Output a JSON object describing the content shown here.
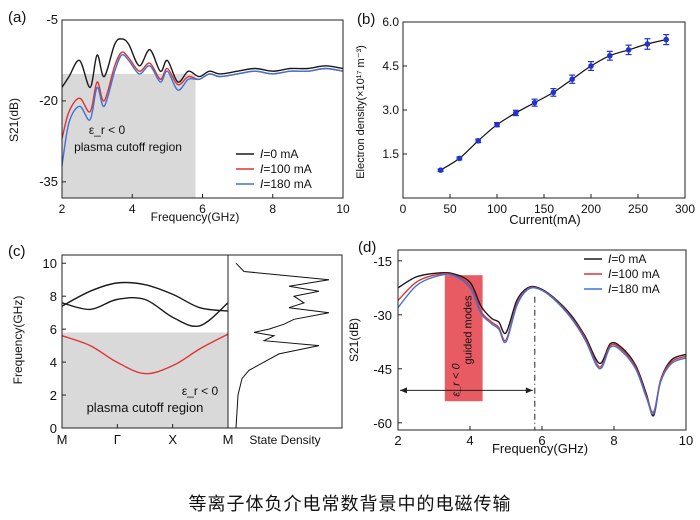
{
  "caption": "等离子体负介电常数背景中的电磁传输",
  "colors": {
    "black": "#1a1a1a",
    "red": "#e03232",
    "blue": "#3f72d6",
    "shade": "#d9d9d9",
    "pink": "#e85b63",
    "marker": "#2233cc"
  },
  "panels": {
    "a": {
      "label": "(a)"
    },
    "b": {
      "label": "(b)"
    },
    "c": {
      "label": "(c)"
    },
    "d": {
      "label": "(d)"
    }
  },
  "chart_data": [
    {
      "id": "a",
      "type": "line",
      "xlabel": "Frequency(GHz)",
      "ylabel": "S21(dB)",
      "xlim": [
        2,
        10
      ],
      "ylim": [
        -38,
        -5
      ],
      "xticks": [
        2,
        4,
        6,
        8,
        10
      ],
      "yticks": [
        -5,
        -20,
        -35
      ],
      "ytick_labels": [
        "-5",
        "-20",
        "-35"
      ],
      "shaded_region": {
        "x": [
          2,
          5.8
        ],
        "y": [
          -38,
          -15
        ]
      },
      "annotations": [
        "ε_r < 0",
        "plasma cutoff region"
      ],
      "legend_position": "bottom-right",
      "series": [
        {
          "name": "I=0 mA",
          "color": "black",
          "x": [
            2,
            2.2,
            2.5,
            2.8,
            3.0,
            3.2,
            3.5,
            3.7,
            3.9,
            4.2,
            4.5,
            4.8,
            5.0,
            5.3,
            5.6,
            5.9,
            6.2,
            6.5,
            7,
            7.5,
            8,
            8.5,
            9,
            9.5,
            10
          ],
          "y": [
            -17.5,
            -15.5,
            -12.5,
            -17.5,
            -11.5,
            -15.5,
            -9.5,
            -8.5,
            -9.5,
            -13.5,
            -10.5,
            -14.5,
            -12.5,
            -16.5,
            -14.5,
            -15.5,
            -14.5,
            -15,
            -14.5,
            -14,
            -14.5,
            -14,
            -14,
            -13.5,
            -14
          ]
        },
        {
          "name": "I=100 mA",
          "color": "red",
          "x": [
            2,
            2.2,
            2.5,
            2.8,
            3.0,
            3.2,
            3.5,
            3.7,
            3.9,
            4.2,
            4.5,
            4.8,
            5.0,
            5.3,
            5.6,
            5.9,
            6.2,
            6.5,
            7,
            7.5,
            8,
            8.5,
            9,
            9.5,
            10
          ],
          "y": [
            -27,
            -22,
            -19.5,
            -22,
            -16.5,
            -20,
            -13.5,
            -11,
            -12,
            -14.5,
            -13,
            -16,
            -14,
            -17,
            -15.5,
            -16,
            -15,
            -15.5,
            -15,
            -14.5,
            -15,
            -14.5,
            -14.5,
            -14,
            -14.5
          ]
        },
        {
          "name": "I=180 mA",
          "color": "blue",
          "x": [
            2,
            2.2,
            2.5,
            2.8,
            3.0,
            3.2,
            3.5,
            3.7,
            3.9,
            4.2,
            4.5,
            4.8,
            5.0,
            5.3,
            5.6,
            5.9,
            6.2,
            6.5,
            7,
            7.5,
            8,
            8.5,
            9,
            9.5,
            10
          ],
          "y": [
            -32,
            -24,
            -21,
            -23.5,
            -17.5,
            -21,
            -14.5,
            -11.5,
            -12.5,
            -15,
            -13.5,
            -16.5,
            -14.5,
            -18,
            -16,
            -16,
            -15,
            -15.5,
            -15,
            -14.5,
            -15,
            -14.5,
            -14.5,
            -14,
            -14.5
          ]
        }
      ]
    },
    {
      "id": "b",
      "type": "scatter",
      "xlabel": "Current(mA)",
      "ylabel": "Electron density(×10¹⁷ m⁻³)",
      "xlim": [
        0,
        300
      ],
      "ylim": [
        0,
        6.0
      ],
      "xticks": [
        0,
        50,
        100,
        150,
        200,
        250,
        300
      ],
      "yticks": [
        1.5,
        3.0,
        4.5,
        6.0
      ],
      "ytick_labels": [
        "1.5",
        "3.0",
        "4.5",
        "6.0"
      ],
      "series": [
        {
          "color": "blue",
          "x": [
            40,
            60,
            80,
            100,
            120,
            140,
            160,
            180,
            200,
            220,
            240,
            260,
            280
          ],
          "y": [
            0.95,
            1.35,
            1.95,
            2.5,
            2.9,
            3.25,
            3.6,
            4.05,
            4.5,
            4.85,
            5.05,
            5.25,
            5.4
          ],
          "err": [
            0.04,
            0.05,
            0.06,
            0.07,
            0.09,
            0.12,
            0.13,
            0.14,
            0.15,
            0.15,
            0.16,
            0.18,
            0.17
          ]
        }
      ]
    },
    {
      "id": "c",
      "type": "line",
      "xlabel": "",
      "ylabel": "Frequency(GHz)",
      "xticks": [
        "M",
        "Γ",
        "X",
        "M"
      ],
      "ylim": [
        0,
        10.5
      ],
      "yticks": [
        0,
        2,
        4,
        6,
        8,
        10
      ],
      "shaded_region": {
        "y": [
          0,
          5.8
        ]
      },
      "annotations": [
        "ε_r < 0",
        "plasma cutoff region"
      ],
      "side_panel_label": "State Density",
      "series": [
        {
          "color": "black",
          "x": [
            0,
            0.17,
            0.33,
            0.5,
            0.67,
            0.83,
            1
          ],
          "y": [
            7.4,
            8.3,
            8.8,
            8.7,
            8.1,
            7.3,
            7.1
          ]
        },
        {
          "color": "black",
          "x": [
            0,
            0.17,
            0.33,
            0.5,
            0.67,
            0.83,
            1
          ],
          "y": [
            7.6,
            7.2,
            7.8,
            7.8,
            6.7,
            6.2,
            7.6
          ]
        },
        {
          "color": "red",
          "x": [
            0,
            0.17,
            0.33,
            0.5,
            0.67,
            0.83,
            1
          ],
          "y": [
            5.6,
            5.0,
            4.0,
            3.3,
            3.8,
            4.8,
            5.7
          ]
        }
      ],
      "state_density": {
        "y": [
          0,
          2,
          3,
          3.5,
          4,
          4.5,
          5,
          5.3,
          5.6,
          5.8,
          6,
          6.3,
          6.6,
          7,
          7.3,
          7.6,
          8,
          8.3,
          8.6,
          9,
          9.5,
          10
        ],
        "v": [
          0.02,
          0.04,
          0.08,
          0.15,
          0.3,
          0.45,
          0.85,
          0.3,
          0.4,
          0.2,
          0.35,
          0.5,
          0.6,
          0.95,
          0.55,
          0.7,
          0.6,
          0.85,
          0.55,
          0.95,
          0.1,
          0.02
        ]
      }
    },
    {
      "id": "d",
      "type": "line",
      "xlabel": "Frequency(GHz)",
      "ylabel": "S21(dB)",
      "xlim": [
        2,
        10
      ],
      "ylim": [
        -62,
        -12
      ],
      "xticks": [
        2,
        4,
        6,
        8,
        10
      ],
      "yticks": [
        -15,
        -30,
        -45,
        -60
      ],
      "ytick_labels": [
        "-15",
        "-30",
        "-45",
        "-60"
      ],
      "highlight_region": {
        "x": [
          3.3,
          4.35
        ]
      },
      "dashdot_line_x": 5.8,
      "arrow_y": -51,
      "annotations": [
        "ε_r < 0",
        "guided modes"
      ],
      "legend_position": "top-right",
      "series": [
        {
          "name": "I=0 mA",
          "color": "black",
          "x": [
            2,
            2.5,
            3,
            3.5,
            4,
            4.3,
            4.6,
            4.8,
            5.0,
            5.3,
            5.6,
            5.9,
            6.3,
            6.8,
            7.2,
            7.6,
            7.9,
            8.2,
            8.6,
            8.9,
            9.1,
            9.3,
            9.6,
            10
          ],
          "y": [
            -22.5,
            -19.5,
            -18.5,
            -18.5,
            -21,
            -27.5,
            -31,
            -32,
            -35,
            -26,
            -22.5,
            -22.5,
            -25,
            -30,
            -36,
            -43.5,
            -38,
            -39,
            -44,
            -52,
            -58,
            -48,
            -42.5,
            -41
          ]
        },
        {
          "name": "I=100 mA",
          "color": "red",
          "x": [
            2,
            2.5,
            3,
            3.5,
            4,
            4.3,
            4.6,
            4.8,
            5.0,
            5.3,
            5.6,
            5.9,
            6.3,
            6.8,
            7.2,
            7.6,
            7.9,
            8.2,
            8.6,
            8.9,
            9.1,
            9.3,
            9.6,
            10
          ],
          "y": [
            -26,
            -21,
            -19,
            -18.8,
            -22,
            -29,
            -32,
            -33.5,
            -37,
            -27,
            -22.8,
            -22.7,
            -25.2,
            -30.5,
            -36.5,
            -44.5,
            -38.5,
            -39.5,
            -44.5,
            -52.5,
            -57,
            -48,
            -43,
            -41.5
          ]
        },
        {
          "name": "I=180 mA",
          "color": "blue",
          "x": [
            2,
            2.5,
            3,
            3.5,
            4,
            4.3,
            4.6,
            4.8,
            5.0,
            5.3,
            5.6,
            5.9,
            6.3,
            6.8,
            7.2,
            7.6,
            7.9,
            8.2,
            8.6,
            8.9,
            9.1,
            9.3,
            9.6,
            10
          ],
          "y": [
            -28,
            -22,
            -19.5,
            -19,
            -22.5,
            -29.5,
            -32.5,
            -34,
            -37.5,
            -27.5,
            -23,
            -22.8,
            -25.4,
            -30.8,
            -37,
            -45,
            -39,
            -40,
            -45,
            -53,
            -57.5,
            -48.5,
            -43.5,
            -42
          ]
        }
      ]
    }
  ]
}
